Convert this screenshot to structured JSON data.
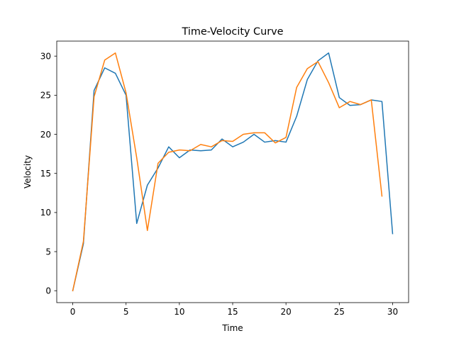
{
  "chart_data": {
    "type": "line",
    "title": "Time-Velocity Curve",
    "xlabel": "Time",
    "ylabel": "Velocity",
    "xlim": [
      -1.5,
      31.5
    ],
    "ylim": [
      -1.52,
      31.92
    ],
    "xticks": [
      0,
      5,
      10,
      15,
      20,
      25,
      30
    ],
    "yticks": [
      0,
      5,
      10,
      15,
      20,
      25,
      30
    ],
    "grid": false,
    "legend": "none",
    "series": [
      {
        "color": "#1f77b4",
        "x": [
          0,
          1,
          2,
          3,
          4,
          5,
          6,
          7,
          8,
          9,
          10,
          11,
          12,
          13,
          14,
          15,
          16,
          17,
          18,
          19,
          20,
          21,
          22,
          23,
          24,
          25,
          26,
          27,
          28,
          29,
          30
        ],
        "y": [
          0.0,
          6.0,
          25.6,
          28.5,
          27.8,
          25.0,
          8.6,
          13.5,
          15.7,
          18.4,
          17.0,
          18.0,
          17.9,
          18.0,
          19.4,
          18.4,
          19.0,
          20.0,
          19.0,
          19.2,
          19.0,
          22.3,
          27.0,
          29.4,
          30.4,
          24.7,
          23.7,
          23.8,
          24.4,
          24.2,
          7.3
        ]
      },
      {
        "color": "#ff7f0e",
        "x": [
          0,
          1,
          2,
          3,
          4,
          5,
          6,
          7,
          8,
          9,
          10,
          11,
          12,
          13,
          14,
          15,
          16,
          17,
          18,
          19,
          20,
          21,
          22,
          23,
          24,
          25,
          26,
          27,
          28,
          29
        ],
        "y": [
          0.0,
          6.3,
          24.8,
          29.5,
          30.4,
          25.3,
          17.0,
          7.7,
          16.3,
          17.7,
          18.0,
          17.9,
          18.7,
          18.4,
          19.2,
          19.1,
          20.0,
          20.2,
          20.2,
          18.9,
          19.6,
          26.0,
          28.4,
          29.3,
          26.6,
          23.4,
          24.2,
          23.8,
          24.4,
          12.1
        ]
      }
    ]
  }
}
